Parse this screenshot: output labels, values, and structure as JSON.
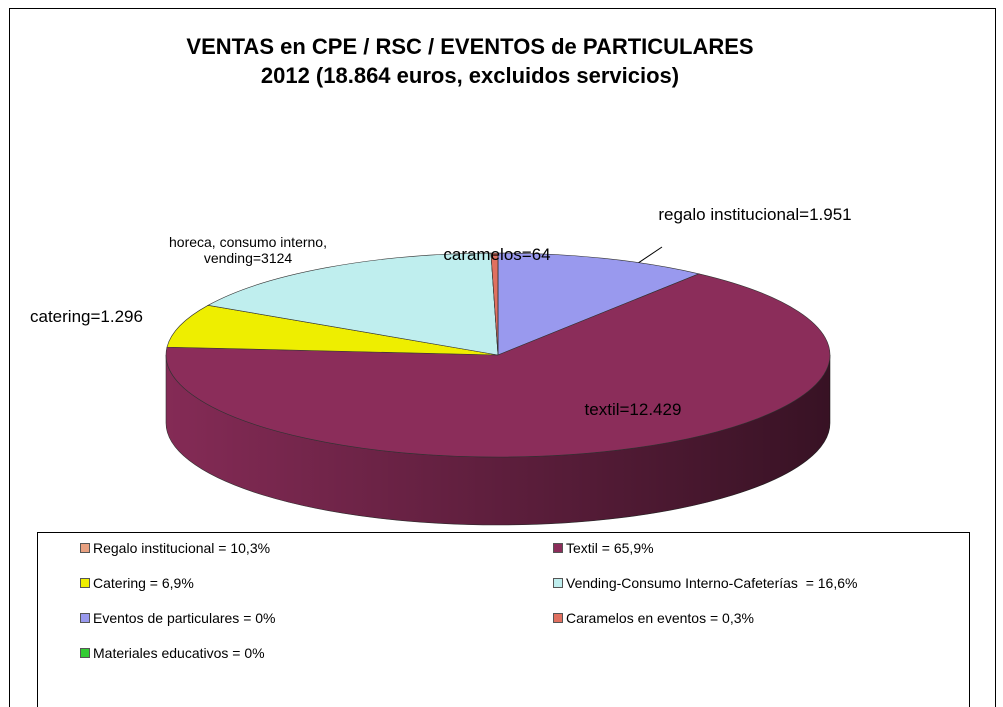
{
  "chart_data": {
    "type": "pie",
    "title": "VENTAS en CPE / RSC / EVENTOS de PARTICULARES",
    "subtitle": "2012  (18.864 euros, excluidos servicios)",
    "categories": [
      "Regalo institucional = 10,3%",
      "Textil = 65,9%",
      "Catering = 6,9%",
      "Vending-Consumo Interno-Cafeterías  = 16,6%",
      "Eventos de particulares = 0%",
      "Caramelos en eventos = 0,3%",
      "Materiales educativos = 0%"
    ],
    "values": [
      1951,
      12429,
      1296,
      3124,
      0,
      64,
      0
    ],
    "value_labels": [
      "regalo institucional=1.951",
      "textil=12.429",
      "catering=1.296",
      "horeca, consumo interno, vending=3124",
      null,
      "caramelos=64",
      null
    ],
    "colors": [
      "#9999ee",
      "#8b2d5a",
      "#eeee00",
      "#bfeeee",
      "#9999ee",
      "#e07060",
      "#33cc33"
    ],
    "legend_colors": [
      "#e8a080",
      "#8b2d5a",
      "#eeee00",
      "#bfeeee",
      "#9999ee",
      "#e07060",
      "#33cc33"
    ]
  }
}
